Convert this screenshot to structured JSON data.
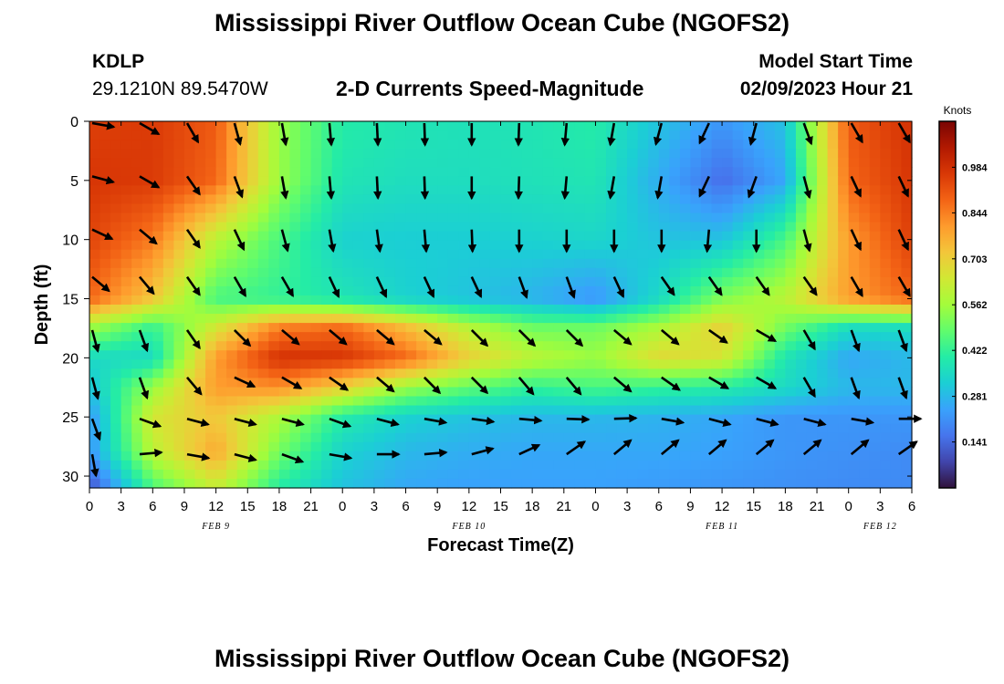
{
  "titles": {
    "top": "Mississippi River Outflow Ocean Cube (NGOFS2)",
    "bottom": "Mississippi River Outflow Ocean Cube (NGOFS2)"
  },
  "header": {
    "station": "KDLP",
    "coordinates": "29.1210N  89.5470W",
    "subtitle": "2-D Currents Speed-Magnitude",
    "model_start_label": "Model Start Time",
    "model_start_value": "02/09/2023 Hour 21"
  },
  "chart_data": {
    "type": "heatmap",
    "xlabel": "Forecast Time(Z)",
    "ylabel": "Depth (ft)",
    "x_range": [
      0,
      78
    ],
    "y_range": [
      0,
      31
    ],
    "x_tick_labels": [
      "0",
      "3",
      "6",
      "9",
      "12",
      "15",
      "18",
      "21",
      "0",
      "3",
      "6",
      "9",
      "12",
      "15",
      "18",
      "21",
      "0",
      "3",
      "6",
      "9",
      "12",
      "15",
      "18",
      "21",
      "0",
      "3",
      "6"
    ],
    "y_ticks": [
      0,
      5,
      10,
      15,
      20,
      25,
      30
    ],
    "day_labels": [
      {
        "text": "FEB 9",
        "x": 12
      },
      {
        "text": "FEB 10",
        "x": 36
      },
      {
        "text": "FEB 11",
        "x": 60
      },
      {
        "text": "FEB 12",
        "x": 75
      }
    ],
    "colorbar": {
      "label": "Knots",
      "min": 0,
      "max": 1.125,
      "ticks": [
        0.984,
        0.844,
        0.703,
        0.562,
        0.422,
        0.281,
        0.141
      ],
      "colors": [
        "#30123b",
        "#4145ab",
        "#4675ed",
        "#39a2fc",
        "#1bcfd4",
        "#24eca6",
        "#61fc6c",
        "#a4fc3b",
        "#d1e834",
        "#f3c63a",
        "#fe9b2d",
        "#f36315",
        "#d93806",
        "#b11901",
        "#7a0403"
      ]
    },
    "speed_field": {
      "x": [
        0,
        6,
        12,
        18,
        24,
        30,
        36,
        42,
        48,
        54,
        60,
        66,
        72,
        78
      ],
      "depth": [
        0,
        5,
        10,
        15,
        17.5,
        20,
        22.5,
        25,
        28,
        31
      ],
      "values": [
        [
          0.95,
          0.96,
          0.9,
          0.55,
          0.4,
          0.38,
          0.37,
          0.38,
          0.4,
          0.3,
          0.22,
          0.3,
          0.9,
          0.98
        ],
        [
          0.97,
          0.96,
          0.88,
          0.55,
          0.38,
          0.36,
          0.36,
          0.37,
          0.38,
          0.26,
          0.15,
          0.25,
          0.88,
          0.97
        ],
        [
          0.94,
          0.85,
          0.6,
          0.45,
          0.33,
          0.32,
          0.32,
          0.33,
          0.34,
          0.3,
          0.3,
          0.45,
          0.8,
          0.95
        ],
        [
          0.88,
          0.72,
          0.45,
          0.42,
          0.38,
          0.33,
          0.3,
          0.27,
          0.22,
          0.35,
          0.52,
          0.6,
          0.8,
          0.88
        ],
        [
          0.55,
          0.42,
          0.65,
          0.85,
          0.88,
          0.75,
          0.6,
          0.5,
          0.5,
          0.58,
          0.7,
          0.5,
          0.35,
          0.35
        ],
        [
          0.35,
          0.35,
          0.8,
          0.98,
          0.97,
          0.88,
          0.7,
          0.6,
          0.55,
          0.68,
          0.65,
          0.38,
          0.25,
          0.28
        ],
        [
          0.3,
          0.55,
          0.8,
          0.82,
          0.7,
          0.55,
          0.48,
          0.42,
          0.45,
          0.42,
          0.4,
          0.35,
          0.28,
          0.28
        ],
        [
          0.22,
          0.65,
          0.72,
          0.58,
          0.4,
          0.33,
          0.3,
          0.28,
          0.28,
          0.27,
          0.25,
          0.22,
          0.22,
          0.22
        ],
        [
          0.22,
          0.6,
          0.78,
          0.5,
          0.33,
          0.28,
          0.26,
          0.25,
          0.25,
          0.25,
          0.24,
          0.22,
          0.21,
          0.2
        ],
        [
          0.1,
          0.45,
          0.62,
          0.4,
          0.3,
          0.25,
          0.24,
          0.24,
          0.24,
          0.23,
          0.22,
          0.21,
          0.2,
          0.2
        ]
      ]
    },
    "vectors": {
      "x": [
        0,
        4.5,
        9,
        13.5,
        18,
        22.5,
        27,
        31.5,
        36,
        40.5,
        45,
        49.5,
        54,
        58.5,
        63,
        67.5,
        72,
        76.5
      ],
      "depth": [
        0,
        4.5,
        9,
        13,
        17.5,
        21.5,
        25,
        28
      ],
      "angle_deg": [
        [
          10,
          30,
          60,
          75,
          80,
          85,
          87,
          88,
          90,
          92,
          95,
          100,
          105,
          115,
          105,
          70,
          60,
          60
        ],
        [
          15,
          30,
          55,
          70,
          80,
          85,
          87,
          88,
          90,
          92,
          95,
          100,
          100,
          115,
          110,
          75,
          65,
          65
        ],
        [
          25,
          40,
          55,
          65,
          75,
          80,
          82,
          85,
          88,
          90,
          90,
          90,
          90,
          95,
          90,
          75,
          65,
          65
        ],
        [
          40,
          50,
          55,
          60,
          60,
          65,
          65,
          65,
          65,
          70,
          70,
          65,
          55,
          55,
          55,
          55,
          60,
          60
        ],
        [
          75,
          70,
          55,
          45,
          40,
          40,
          40,
          40,
          45,
          45,
          45,
          40,
          40,
          35,
          30,
          60,
          70,
          70
        ],
        [
          75,
          70,
          50,
          25,
          30,
          35,
          40,
          45,
          45,
          50,
          50,
          40,
          35,
          30,
          30,
          60,
          70,
          70
        ],
        [
          70,
          20,
          15,
          15,
          15,
          20,
          15,
          10,
          8,
          5,
          2,
          -2,
          10,
          15,
          15,
          15,
          10,
          0
        ],
        [
          80,
          -5,
          10,
          15,
          20,
          10,
          0,
          -5,
          -15,
          -25,
          -35,
          -40,
          -40,
          -40,
          -40,
          -40,
          -40,
          -35
        ]
      ]
    }
  }
}
